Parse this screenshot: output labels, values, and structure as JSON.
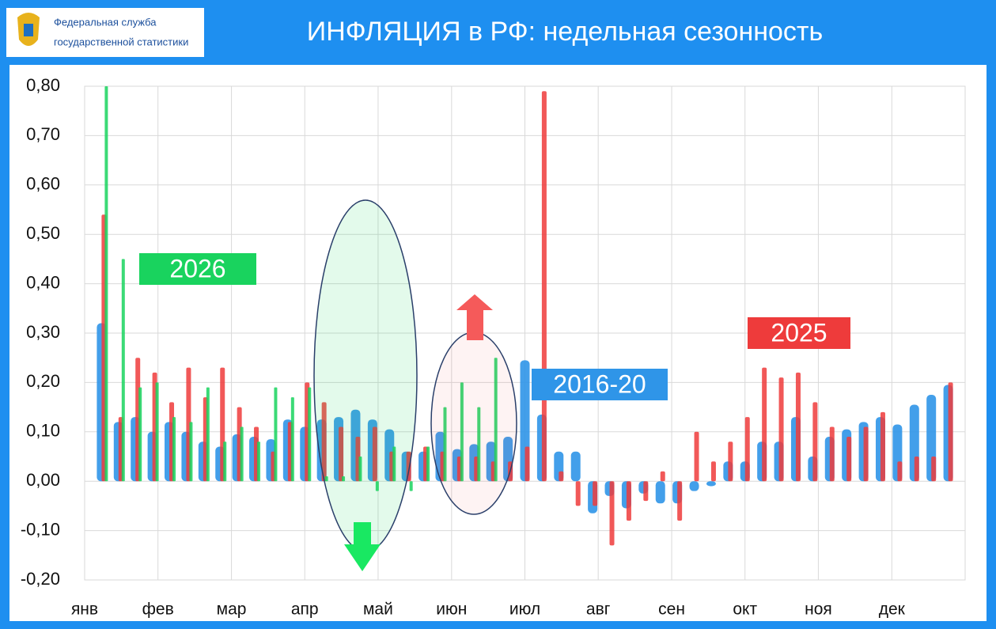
{
  "header": {
    "org_line1": "Федеральная служба",
    "org_line2": "государственной статистики",
    "title": "ИНФЛЯЦИЯ в РФ: недельная сезонность"
  },
  "chart_data": {
    "type": "bar",
    "x": [
      1,
      2,
      3,
      4,
      5,
      6,
      7,
      8,
      9,
      10,
      11,
      12,
      13,
      14,
      15,
      16,
      17,
      18,
      19,
      20,
      21,
      22,
      23,
      24,
      25,
      26,
      27,
      28,
      29,
      30,
      31,
      32,
      33,
      34,
      35,
      36,
      37,
      38,
      39,
      40,
      41,
      42,
      43,
      44,
      45,
      46,
      47,
      48,
      49,
      50,
      51
    ],
    "xlim": [
      0,
      52
    ],
    "xticks": [
      {
        "value": 0,
        "label": "янв"
      },
      {
        "value": 4.33,
        "label": "фев"
      },
      {
        "value": 8.67,
        "label": "мар"
      },
      {
        "value": 13,
        "label": "апр"
      },
      {
        "value": 17.33,
        "label": "май"
      },
      {
        "value": 21.67,
        "label": "июн"
      },
      {
        "value": 26,
        "label": "июл"
      },
      {
        "value": 30.33,
        "label": "авг"
      },
      {
        "value": 34.67,
        "label": "сен"
      },
      {
        "value": 39,
        "label": "окт"
      },
      {
        "value": 43.33,
        "label": "ноя"
      },
      {
        "value": 47.67,
        "label": "дек"
      }
    ],
    "ylim": [
      -0.2,
      0.8
    ],
    "yticks": [
      {
        "value": 0.8,
        "label": "0,80"
      },
      {
        "value": 0.7,
        "label": "0,70"
      },
      {
        "value": 0.6,
        "label": "0,60"
      },
      {
        "value": 0.5,
        "label": "0,50"
      },
      {
        "value": 0.4,
        "label": "0,40"
      },
      {
        "value": 0.3,
        "label": "0,30"
      },
      {
        "value": 0.2,
        "label": "0,20"
      },
      {
        "value": 0.1,
        "label": "0,10"
      },
      {
        "value": 0,
        "label": "0,00"
      },
      {
        "value": -0.1,
        "label": "-0,10"
      },
      {
        "value": -0.2,
        "label": "-0,20"
      }
    ],
    "grid": true,
    "series": [
      {
        "name": "2016-20",
        "color": "#2f95e8",
        "values": [
          0.32,
          0.12,
          0.13,
          0.1,
          0.12,
          0.1,
          0.08,
          0.07,
          0.095,
          0.09,
          0.085,
          0.125,
          0.11,
          0.125,
          0.13,
          0.145,
          0.125,
          0.105,
          0.06,
          0.06,
          0.1,
          0.065,
          0.075,
          0.08,
          0.09,
          0.245,
          0.135,
          0.06,
          0.06,
          -0.065,
          -0.03,
          -0.055,
          -0.025,
          -0.045,
          -0.045,
          -0.02,
          -0.01,
          0.04,
          0.04,
          0.08,
          0.08,
          0.13,
          0.05,
          0.09,
          0.105,
          0.12,
          0.13,
          0.115,
          0.155,
          0.175,
          0.195
        ]
      },
      {
        "name": "2025",
        "color": "#ee3b3b",
        "values": [
          0.54,
          0.13,
          0.25,
          0.22,
          0.16,
          0.23,
          0.17,
          0.23,
          0.15,
          0.11,
          0.06,
          0.12,
          0.2,
          0.16,
          0.11,
          0.09,
          0.11,
          0.06,
          0.06,
          0.07,
          0.06,
          0.05,
          0.05,
          0.04,
          0.04,
          0.07,
          0.79,
          0.02,
          -0.05,
          -0.05,
          -0.13,
          -0.08,
          -0.04,
          0.02,
          -0.08,
          0.1,
          0.04,
          0.08,
          0.13,
          0.23,
          0.21,
          0.22,
          0.16,
          0.11,
          0.09,
          0.11,
          0.14,
          0.04,
          0.05,
          0.05,
          0.2
        ]
      },
      {
        "name": "2026",
        "color": "#19d35e",
        "values": [
          0.8,
          0.45,
          0.19,
          0.2,
          0.13,
          0.12,
          0.19,
          0.08,
          0.11,
          0.08,
          0.19,
          0.17,
          0.19,
          0.01,
          0.01,
          0.05,
          -0.02,
          0.07,
          -0.02,
          0.07,
          0.15,
          0.2,
          0.15,
          0.25,
          null,
          null,
          null,
          null,
          null,
          null,
          null,
          null,
          null,
          null,
          null,
          null,
          null,
          null,
          null,
          null,
          null,
          null,
          null,
          null,
          null,
          null,
          null,
          null,
          null,
          null,
          null
        ]
      }
    ]
  }
}
